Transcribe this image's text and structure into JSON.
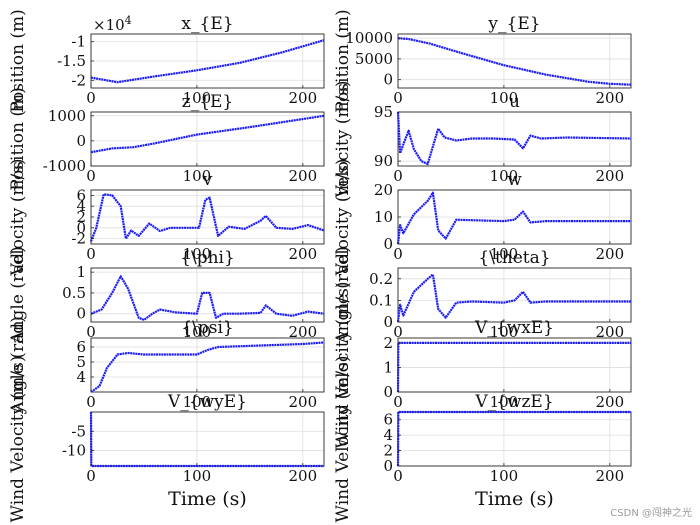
{
  "figure": {
    "watermark": "CSDN @闯神之光",
    "line_color": "#1a1aff",
    "grid_color": "#dddddd"
  },
  "chart_data": [
    {
      "type": "line",
      "title": "x_{E}",
      "ylabel": "Position (m)",
      "xlabel": "",
      "xlim": [
        0,
        220
      ],
      "ylim": [
        -2.2,
        -0.8
      ],
      "xticks": [
        0,
        100,
        200
      ],
      "yticks": [
        -1,
        -1.5,
        -2
      ],
      "ytick_labels": [
        "-1",
        "-1.5",
        "-2"
      ],
      "exponent": "×10^4",
      "series": [
        {
          "name": "x_{E}",
          "x": [
            0,
            25,
            60,
            100,
            140,
            180,
            220
          ],
          "y": [
            -1.93,
            -2.05,
            -1.9,
            -1.74,
            -1.55,
            -1.28,
            -0.96
          ]
        }
      ]
    },
    {
      "type": "line",
      "title": "y_{E}",
      "ylabel": "Position (m)",
      "xlabel": "",
      "xlim": [
        0,
        220
      ],
      "ylim": [
        -2000,
        11000
      ],
      "xticks": [
        0,
        100,
        200
      ],
      "yticks": [
        10000,
        5000,
        0
      ],
      "ytick_labels": [
        "10000",
        "5000",
        "0"
      ],
      "series": [
        {
          "name": "y_{E}",
          "x": [
            0,
            10,
            30,
            60,
            100,
            140,
            180,
            200,
            220
          ],
          "y": [
            10000,
            9800,
            8700,
            6400,
            3500,
            1200,
            -500,
            -1000,
            -1200
          ]
        }
      ]
    },
    {
      "type": "line",
      "title": "z_{E}",
      "ylabel": "Position (m)",
      "xlabel": "",
      "xlim": [
        0,
        220
      ],
      "ylim": [
        -1000,
        1150
      ],
      "xticks": [
        0,
        100,
        200
      ],
      "yticks": [
        1000,
        0,
        -1000
      ],
      "ytick_labels": [
        "1000",
        "0",
        "-1000"
      ],
      "series": [
        {
          "name": "z_{E}",
          "x": [
            0,
            20,
            40,
            60,
            100,
            150,
            220
          ],
          "y": [
            -450,
            -300,
            -250,
            -100,
            250,
            550,
            1000
          ]
        }
      ]
    },
    {
      "type": "line",
      "title": "u",
      "ylabel": "Velocity (m/s)",
      "xlabel": "",
      "xlim": [
        0,
        220
      ],
      "ylim": [
        89.5,
        95
      ],
      "xticks": [
        0,
        100,
        200
      ],
      "yticks": [
        95,
        90
      ],
      "ytick_labels": [
        "95",
        "90"
      ],
      "series": [
        {
          "name": "u",
          "x": [
            0,
            2,
            6,
            10,
            15,
            22,
            28,
            33,
            38,
            44,
            55,
            70,
            90,
            110,
            118,
            125,
            135,
            160,
            220
          ],
          "y": [
            95,
            90.8,
            92,
            93.1,
            91.2,
            90,
            89.7,
            91.5,
            93.3,
            92.4,
            92.1,
            92.3,
            92.3,
            92.2,
            91.3,
            92.6,
            92.3,
            92.4,
            92.3
          ]
        }
      ]
    },
    {
      "type": "line",
      "title": "v",
      "ylabel": "Velocity (m/s)",
      "xlabel": "",
      "xlim": [
        0,
        220
      ],
      "ylim": [
        -3,
        7
      ],
      "xticks": [
        0,
        100,
        200
      ],
      "yticks": [
        6,
        4,
        2,
        0,
        -2
      ],
      "ytick_labels": [
        "6",
        "4",
        "2",
        "0",
        "-2"
      ],
      "series": [
        {
          "name": "v",
          "x": [
            0,
            5,
            12,
            20,
            28,
            33,
            38,
            45,
            55,
            65,
            75,
            90,
            102,
            108,
            112,
            120,
            130,
            145,
            160,
            165,
            175,
            190,
            205,
            220
          ],
          "y": [
            -2.5,
            0,
            6.2,
            6,
            4,
            -2,
            -0.5,
            -1.5,
            0.8,
            -0.6,
            0,
            0,
            0,
            5.2,
            5.6,
            -1.5,
            0.2,
            -0.2,
            1.3,
            2.2,
            0,
            -0.2,
            0.5,
            -0.5
          ]
        }
      ]
    },
    {
      "type": "line",
      "title": "w",
      "ylabel": "Velocity (m/s)",
      "xlabel": "",
      "xlim": [
        0,
        220
      ],
      "ylim": [
        0,
        20
      ],
      "xticks": [
        0,
        100,
        200
      ],
      "yticks": [
        20,
        10,
        0
      ],
      "ytick_labels": [
        "20",
        "10",
        "0"
      ],
      "series": [
        {
          "name": "w",
          "x": [
            0,
            2,
            5,
            15,
            28,
            33,
            38,
            45,
            55,
            70,
            100,
            110,
            118,
            125,
            140,
            220
          ],
          "y": [
            0,
            7,
            4,
            11,
            16,
            19,
            5,
            2,
            9,
            8.8,
            8.5,
            9,
            12,
            8,
            8.5,
            8.5
          ]
        }
      ]
    },
    {
      "type": "line",
      "title": "{\\phi}",
      "ylabel": "Angle (rad)",
      "xlabel": "",
      "xlim": [
        0,
        220
      ],
      "ylim": [
        -0.2,
        1.1
      ],
      "xticks": [
        0,
        100,
        200
      ],
      "yticks": [
        1,
        0.5,
        0
      ],
      "ytick_labels": [
        "1",
        "0.5",
        "0"
      ],
      "series": [
        {
          "name": "{\\phi}",
          "x": [
            0,
            10,
            20,
            28,
            35,
            45,
            50,
            58,
            65,
            80,
            100,
            105,
            112,
            118,
            125,
            140,
            160,
            165,
            175,
            190,
            205,
            220
          ],
          "y": [
            0,
            0.1,
            0.5,
            0.9,
            0.6,
            -0.1,
            -0.15,
            0,
            0.1,
            0.03,
            0,
            0.5,
            0.5,
            -0.1,
            0,
            0,
            0.02,
            0.2,
            0,
            -0.05,
            0.05,
            0
          ]
        }
      ]
    },
    {
      "type": "line",
      "title": "{\\theta}",
      "ylabel": "Angle (rad)",
      "xlabel": "",
      "xlim": [
        0,
        220
      ],
      "ylim": [
        0,
        0.25
      ],
      "xticks": [
        0,
        100,
        200
      ],
      "yticks": [
        0.2,
        0.1,
        0
      ],
      "ytick_labels": [
        "0.2",
        "0.1",
        "0"
      ],
      "series": [
        {
          "name": "{\\theta}",
          "x": [
            0,
            2,
            5,
            15,
            28,
            33,
            38,
            45,
            55,
            70,
            100,
            110,
            118,
            125,
            140,
            220
          ],
          "y": [
            0,
            0.08,
            0.03,
            0.14,
            0.2,
            0.22,
            0.06,
            0.02,
            0.09,
            0.095,
            0.09,
            0.1,
            0.14,
            0.09,
            0.095,
            0.095
          ]
        }
      ]
    },
    {
      "type": "line",
      "title": "{\\psi}",
      "ylabel": "Angle (rad)",
      "xlabel": "",
      "xlim": [
        0,
        220
      ],
      "ylim": [
        3,
        6.6
      ],
      "xticks": [
        0,
        100,
        200
      ],
      "yticks": [
        6,
        5,
        4
      ],
      "ytick_labels": [
        "6",
        "5",
        "4"
      ],
      "series": [
        {
          "name": "{\\psi}",
          "x": [
            0,
            8,
            15,
            25,
            35,
            50,
            100,
            110,
            120,
            160,
            200,
            220
          ],
          "y": [
            3,
            3.4,
            4.6,
            5.5,
            5.6,
            5.5,
            5.5,
            5.8,
            6.0,
            6.1,
            6.2,
            6.3
          ]
        }
      ]
    },
    {
      "type": "line",
      "title": "V_{wxE}",
      "ylabel": "Wind Velocity (m/s)",
      "xlabel": "",
      "xlim": [
        0,
        220
      ],
      "ylim": [
        0,
        2.2
      ],
      "xticks": [
        0,
        100,
        200
      ],
      "yticks": [
        2,
        1,
        0
      ],
      "ytick_labels": [
        "2",
        "1",
        "0"
      ],
      "series": [
        {
          "name": "V_{wxE}",
          "x": [
            0,
            0.3,
            220
          ],
          "y": [
            0,
            2,
            2
          ]
        }
      ]
    },
    {
      "type": "line",
      "title": "V_{wyE}",
      "ylabel": "Wind Velocity (m/s)",
      "xlabel": "Time (s)",
      "xlim": [
        0,
        220
      ],
      "ylim": [
        -14,
        0
      ],
      "xticks": [
        0,
        100,
        200
      ],
      "yticks": [
        -5,
        -10
      ],
      "ytick_labels": [
        "-5",
        "-10"
      ],
      "series": [
        {
          "name": "V_{wyE}",
          "x": [
            0,
            0.3,
            220
          ],
          "y": [
            0,
            -14,
            -14
          ]
        }
      ]
    },
    {
      "type": "line",
      "title": "V_{wzE}",
      "ylabel": "Wind Velocity (m/s)",
      "xlabel": "Time (s)",
      "xlim": [
        0,
        220
      ],
      "ylim": [
        0,
        7
      ],
      "xticks": [
        0,
        100,
        200
      ],
      "yticks": [
        6,
        4,
        2,
        0
      ],
      "ytick_labels": [
        "6",
        "4",
        "2",
        "0"
      ],
      "series": [
        {
          "name": "V_{wzE}",
          "x": [
            0,
            0.3,
            220
          ],
          "y": [
            0,
            7,
            7
          ]
        }
      ]
    }
  ]
}
